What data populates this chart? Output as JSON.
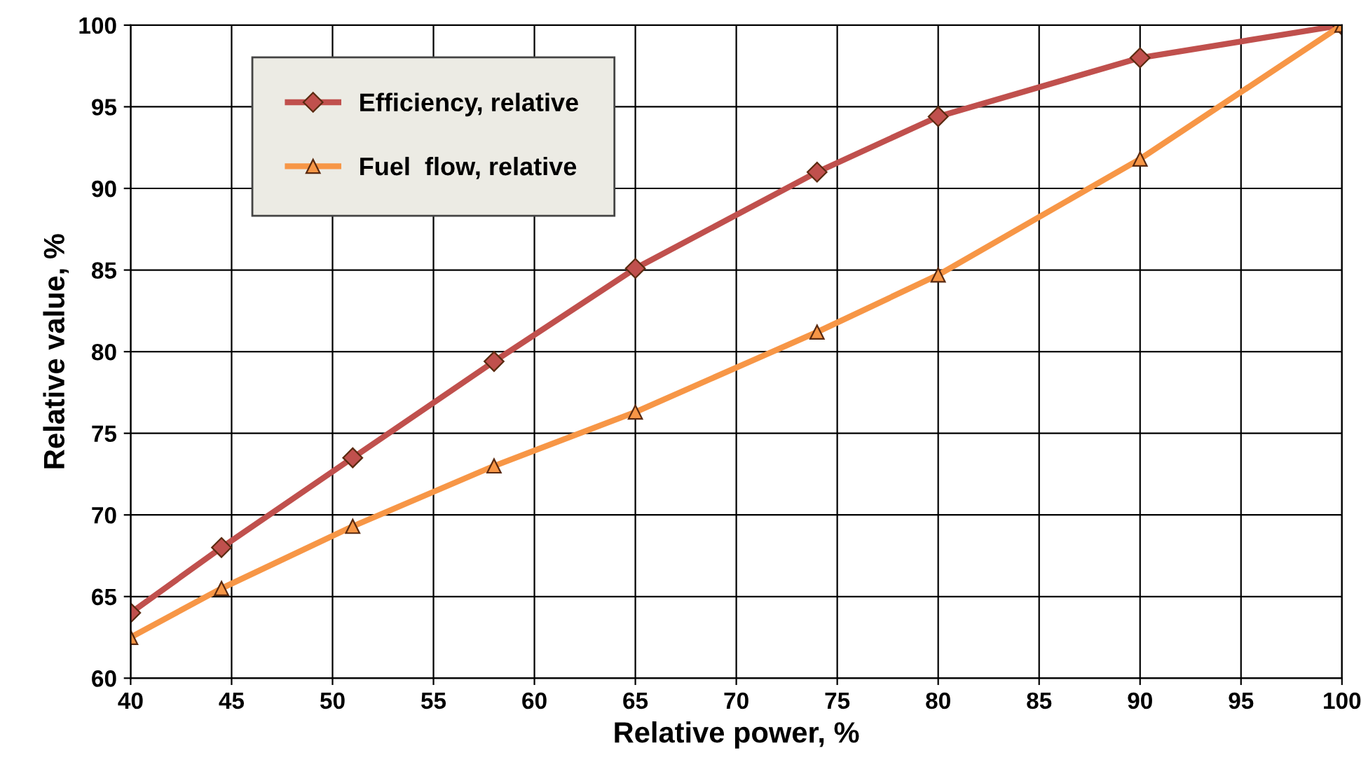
{
  "chart_data": {
    "type": "line",
    "xlabel": "Relative power, %",
    "ylabel": "Relative value, %",
    "series": [
      {
        "name": "Efficiency, relative",
        "color": "#c0504d",
        "marker": "diamond",
        "x": [
          40,
          44.5,
          51,
          58,
          65,
          74,
          80,
          90,
          100
        ],
        "values": [
          64,
          68,
          73.5,
          79.4,
          85.1,
          91,
          94.4,
          98,
          100
        ]
      },
      {
        "name": "Fuel  flow, relative",
        "color": "#f79646",
        "marker": "triangle",
        "x": [
          40,
          44.5,
          51,
          58,
          65,
          74,
          80,
          90,
          100
        ],
        "values": [
          62.5,
          65.5,
          69.3,
          73,
          76.3,
          81.2,
          84.7,
          91.8,
          100
        ]
      }
    ],
    "xlim": [
      40,
      100
    ],
    "xticks": [
      40,
      45,
      50,
      55,
      60,
      65,
      70,
      75,
      80,
      85,
      90,
      95,
      100
    ],
    "ylim": [
      60,
      100
    ],
    "yticks": [
      60,
      65,
      70,
      75,
      80,
      85,
      90,
      95,
      100
    ],
    "grid": true,
    "legend": "top left",
    "line_style": "solid"
  }
}
